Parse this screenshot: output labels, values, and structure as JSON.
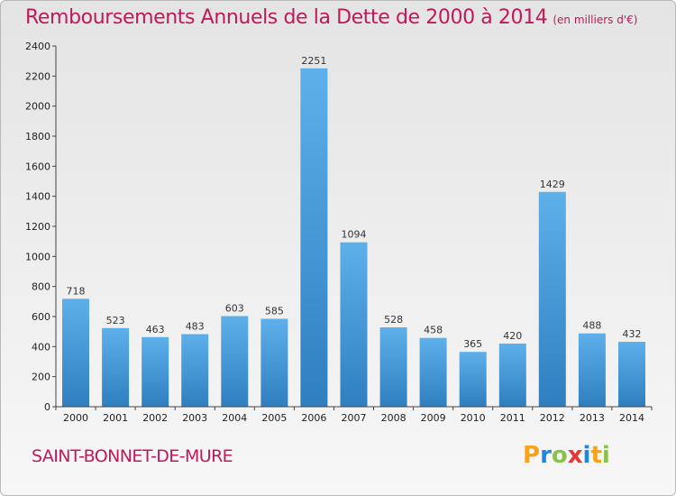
{
  "header": {
    "title": "Remboursements Annuels de la Dette de 2000 à 2014",
    "subtitle": "(en milliers d'€)"
  },
  "footer": {
    "city": "SAINT-BONNET-DE-MURE",
    "logo_letters": [
      "P",
      "r",
      "o",
      "x",
      "i",
      "t",
      "i"
    ],
    "logo_colors": [
      "#f7a21b",
      "#1e88e5",
      "#8bc34a",
      "#e53935",
      "#1e88e5",
      "#f7a21b",
      "#8bc34a"
    ]
  },
  "colors": {
    "bar_top": "#5db0ea",
    "bar_bottom": "#2f7fc0",
    "axis": "#444444",
    "title": "#c2185b"
  },
  "chart_data": {
    "type": "bar",
    "title": "Remboursements Annuels de la Dette de 2000 à 2014",
    "subtitle": "(en milliers d'€)",
    "categories": [
      "2000",
      "2001",
      "2002",
      "2003",
      "2004",
      "2005",
      "2006",
      "2007",
      "2008",
      "2009",
      "2010",
      "2011",
      "2012",
      "2013",
      "2014"
    ],
    "values": [
      718,
      523,
      463,
      483,
      603,
      585,
      2251,
      1094,
      528,
      458,
      365,
      420,
      1429,
      488,
      432
    ],
    "ylim": [
      0,
      2400
    ],
    "yticks": [
      0,
      200,
      400,
      600,
      800,
      1000,
      1200,
      1400,
      1600,
      1800,
      2000,
      2200,
      2400
    ],
    "xlabel": "",
    "ylabel": "",
    "grid": false,
    "data_labels": true
  }
}
